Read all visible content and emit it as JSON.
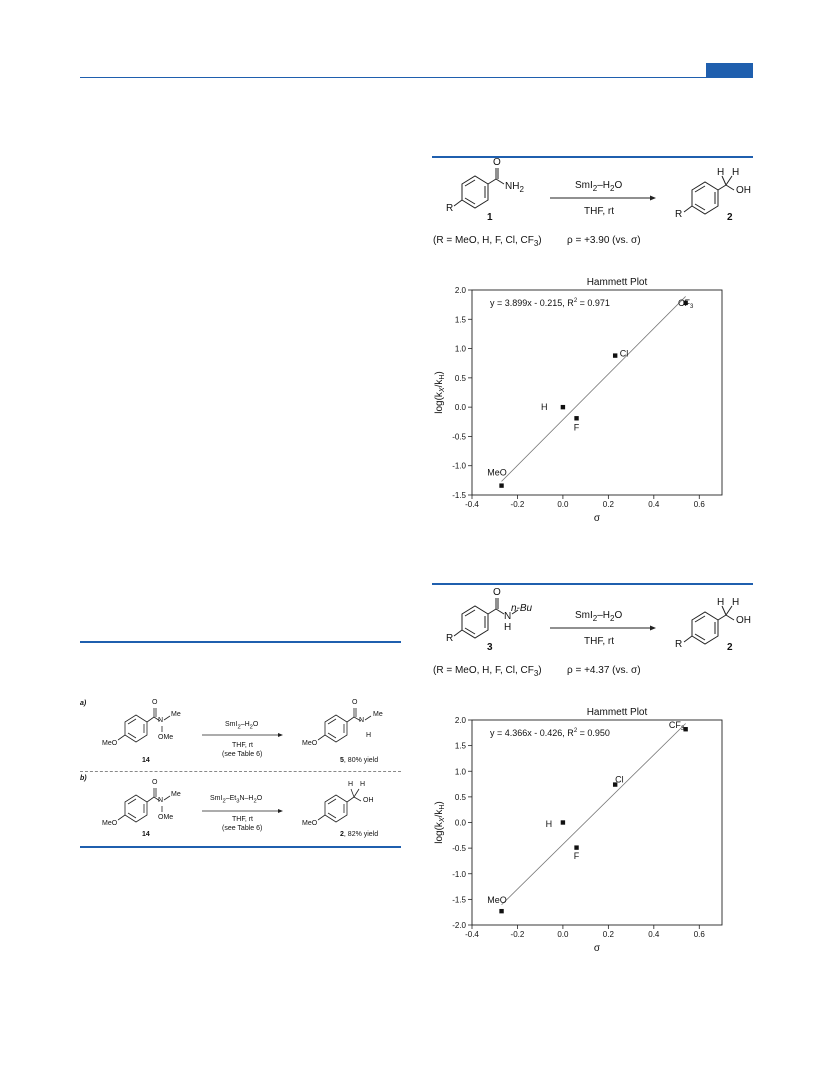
{
  "header": {
    "accent_color": "#1f5fae"
  },
  "scheme1": {
    "sub_r": "R",
    "nh2": "NH",
    "nh2_sub": "2",
    "o": "O",
    "reagent": "SmI",
    "reagent_sub": "2",
    "reagent_tail": "–H",
    "reagent_sub2": "2",
    "reagent_end": "O",
    "conditions": "THF, rt",
    "num_start": "1",
    "num_prod": "2",
    "h1": "H",
    "h2": "H",
    "oh": "OH",
    "r_prod": "R",
    "r_list": "(R = MeO, H, F, Cl, CF",
    "r_list_sub": "3",
    "r_list_end": ")",
    "rho": "ρ = +3.90 (vs. σ)"
  },
  "scheme2": {
    "sub_r": "R",
    "nh": "N",
    "nh_h": "H",
    "nbu": "n-Bu",
    "o": "O",
    "reagent": "SmI",
    "reagent_sub": "2",
    "reagent_tail": "–H",
    "reagent_sub2": "2",
    "reagent_end": "O",
    "conditions": "THF, rt",
    "num_start": "3",
    "num_prod": "2",
    "h1": "H",
    "h2": "H",
    "oh": "OH",
    "r_prod": "R",
    "r_list": "(R = MeO, H, F, Cl, CF",
    "r_list_sub": "3",
    "r_list_end": ")",
    "rho": "ρ = +4.37 (vs. σ)"
  },
  "scheme3": {
    "a_label": "a)",
    "b_label": "b)",
    "a": {
      "meo": "MeO",
      "n": "N",
      "me": "Me",
      "ome": "OMe",
      "o": "O",
      "reagent": "SmI",
      "reagent_sub": "2",
      "reagent_tail": "–H",
      "reagent_sub2": "2",
      "reagent_end": "O",
      "conditions": "THF, rt",
      "see": "(see Table 6)",
      "num_start": "14",
      "prod_meo": "MeO",
      "prod_o": "O",
      "prod_n": "N",
      "prod_me": "Me",
      "prod_h": "H",
      "prod_num": "5",
      "prod_yield": ", 80% yield"
    },
    "b": {
      "meo": "MeO",
      "n": "N",
      "me": "Me",
      "ome": "OMe",
      "o": "O",
      "reagent": "SmI",
      "reagent_sub": "2",
      "reagent_mid": "–Et",
      "reagent_sub2": "3",
      "reagent_tail": "N–H",
      "reagent_sub3": "2",
      "reagent_end": "O",
      "conditions": "THF, rt",
      "see": "(see Table 6)",
      "num_start": "14",
      "prod_meo": "MeO",
      "prod_h1": "H",
      "prod_h2": "H",
      "prod_oh": "OH",
      "prod_num": "2",
      "prod_yield": ", 82% yield"
    }
  },
  "chart_data": [
    {
      "type": "scatter",
      "title": "Hammett Plot",
      "equation": "y = 3.899x - 0.215, R",
      "equation_sup": "2",
      "equation_end": " = 0.971",
      "xlabel": "σ",
      "ylabel_pre": "log(k",
      "ylabel_sub1": "X",
      "ylabel_mid": "/k",
      "ylabel_sub2": "H",
      "ylabel_end": ")",
      "xlim": [
        -0.4,
        0.7
      ],
      "ylim": [
        -1.5,
        2.0
      ],
      "xticks": [
        "-0.4",
        "-0.2",
        "0.0",
        "0.2",
        "0.4",
        "0.6"
      ],
      "xtick_vals": [
        -0.4,
        -0.2,
        0.0,
        0.2,
        0.4,
        0.6
      ],
      "yticks": [
        "-1.5",
        "-1.0",
        "-0.5",
        "0.0",
        "0.5",
        "1.0",
        "1.5",
        "2.0"
      ],
      "ytick_vals": [
        -1.5,
        -1.0,
        -0.5,
        0.0,
        0.5,
        1.0,
        1.5,
        2.0
      ],
      "points": [
        {
          "label": "MeO",
          "x": -0.27,
          "y": -1.34,
          "lx": -0.02,
          "ly": 0.22
        },
        {
          "label": "H",
          "x": 0.0,
          "y": 0.0,
          "lx": -0.05,
          "ly": 0.0
        },
        {
          "label": "F",
          "x": 0.06,
          "y": -0.19,
          "lx": 0.0,
          "ly": -0.16
        },
        {
          "label": "Cl",
          "x": 0.23,
          "y": 0.88,
          "lx": 0.02,
          "ly": 0.04
        },
        {
          "label": "CF",
          "label_sub": "3",
          "x": 0.54,
          "y": 1.78,
          "lx": 0.0,
          "ly": 0.0
        }
      ],
      "fit": {
        "slope": 3.899,
        "intercept": -0.215,
        "x_range": [
          -0.27,
          0.54
        ]
      }
    },
    {
      "type": "scatter",
      "title": "Hammett Plot",
      "equation": "y = 4.366x - 0.426, R",
      "equation_sup": "2",
      "equation_end": " = 0.950",
      "xlabel": "σ",
      "ylabel_pre": "log(k",
      "ylabel_sub1": "X",
      "ylabel_mid": "/k",
      "ylabel_sub2": "H",
      "ylabel_end": ")",
      "xlim": [
        -0.4,
        0.7
      ],
      "ylim": [
        -2.0,
        2.0
      ],
      "xticks": [
        "-0.4",
        "-0.2",
        "0.0",
        "0.2",
        "0.4",
        "0.6"
      ],
      "xtick_vals": [
        -0.4,
        -0.2,
        0.0,
        0.2,
        0.4,
        0.6
      ],
      "yticks": [
        "-2.0",
        "-1.5",
        "-1.0",
        "-0.5",
        "0.0",
        "0.5",
        "1.0",
        "1.5",
        "2.0"
      ],
      "ytick_vals": [
        -2.0,
        -1.5,
        -1.0,
        -0.5,
        0.0,
        0.5,
        1.0,
        1.5,
        2.0
      ],
      "points": [
        {
          "label": "MeO",
          "x": -0.27,
          "y": -1.73,
          "lx": -0.02,
          "ly": 0.22
        },
        {
          "label": "H",
          "x": 0.0,
          "y": 0.0,
          "lx": -0.03,
          "ly": -0.03
        },
        {
          "label": "F",
          "x": 0.06,
          "y": -0.49,
          "lx": 0.0,
          "ly": -0.16
        },
        {
          "label": "Cl",
          "x": 0.23,
          "y": 0.74,
          "lx": 0.0,
          "ly": 0.1
        },
        {
          "label": "CF",
          "label_sub": "3",
          "x": 0.54,
          "y": 1.82,
          "lx": -0.04,
          "ly": 0.08
        }
      ],
      "fit": {
        "slope": 4.366,
        "intercept": -0.426,
        "x_range": [
          -0.27,
          0.54
        ]
      }
    }
  ]
}
